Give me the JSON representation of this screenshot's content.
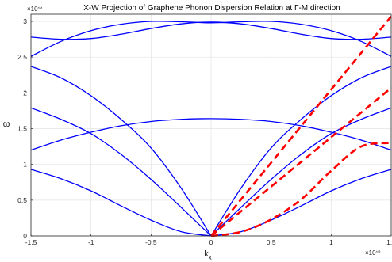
{
  "chart_data": {
    "type": "line",
    "title": "X-W Projection of Graphene Phonon Dispersion Relation at Γ-M direction",
    "xlabel": "k",
    "xlabel_sub": "x",
    "ylabel": "ω",
    "xlim": [
      -15000000000.0,
      15000000000.0
    ],
    "ylim": [
      0,
      310000000000000.0
    ],
    "x_ticks": [
      -15000000000.0,
      -10000000000.0,
      -5000000000.0,
      0,
      5000000000.0,
      10000000000.0,
      15000000000.0
    ],
    "x_tick_labels": [
      "-1.5",
      "-1",
      "-0.5",
      "0",
      "0.5",
      "1",
      "1.5"
    ],
    "y_ticks": [
      0,
      50000000000000.0,
      100000000000000.0,
      150000000000000.0,
      200000000000000.0,
      250000000000000.0,
      300000000000000.0
    ],
    "y_tick_labels": [
      "0",
      "0.5",
      "1",
      "1.5",
      "2",
      "2.5",
      "3"
    ],
    "x_exponent_label": "×10¹⁰",
    "y_exponent_label": "×10¹⁴",
    "grid": true,
    "series": [
      {
        "style": "solid",
        "color": "#0000ff",
        "x": [
          -15000000000.0,
          -12500000000.0,
          -10000000000.0,
          -7500000000.0,
          -5000000000.0,
          -2500000000.0,
          0,
          2500000000.0,
          5000000000.0,
          7500000000.0,
          10000000000.0,
          12500000000.0,
          15000000000.0
        ],
        "y": [
          251000000000000.0,
          272000000000000.0,
          287000000000000.0,
          296000000000000.0,
          300000000000000.0,
          299500000000000.0,
          298000000000000.0,
          299500000000000.0,
          300000000000000.0,
          296000000000000.0,
          287000000000000.0,
          272000000000000.0,
          251000000000000.0
        ]
      },
      {
        "style": "solid",
        "color": "#0000ff",
        "x": [
          -15000000000.0,
          -12500000000.0,
          -10000000000.0,
          -7500000000.0,
          -5000000000.0,
          -2500000000.0,
          0,
          2500000000.0,
          5000000000.0,
          7500000000.0,
          10000000000.0,
          12500000000.0,
          15000000000.0
        ],
        "y": [
          278000000000000.0,
          275000000000000.0,
          276000000000000.0,
          282000000000000.0,
          290000000000000.0,
          296500000000000.0,
          299000000000000.0,
          296500000000000.0,
          290000000000000.0,
          282000000000000.0,
          276000000000000.0,
          275000000000000.0,
          278000000000000.0
        ]
      },
      {
        "style": "solid",
        "color": "#0000ff",
        "x": [
          -15000000000.0,
          -12500000000.0,
          -10000000000.0,
          -7500000000.0,
          -5000000000.0,
          -2500000000.0,
          0,
          2500000000.0,
          5000000000.0,
          7500000000.0,
          10000000000.0,
          12500000000.0,
          15000000000.0
        ],
        "y": [
          237000000000000.0,
          221000000000000.0,
          196000000000000.0,
          163000000000000.0,
          123000000000000.0,
          67000000000000.0,
          0.0,
          67000000000000.0,
          123000000000000.0,
          163000000000000.0,
          196000000000000.0,
          221000000000000.0,
          237000000000000.0
        ]
      },
      {
        "style": "solid",
        "color": "#0000ff",
        "x": [
          -15000000000.0,
          -12500000000.0,
          -10000000000.0,
          -7500000000.0,
          -5000000000.0,
          -2500000000.0,
          0,
          2500000000.0,
          5000000000.0,
          7500000000.0,
          10000000000.0,
          12500000000.0,
          15000000000.0
        ],
        "y": [
          179000000000000.0,
          163000000000000.0,
          143000000000000.0,
          114000000000000.0,
          79000000000000.0,
          40000000000000.0,
          0.0,
          40000000000000.0,
          79000000000000.0,
          114000000000000.0,
          143000000000000.0,
          163000000000000.0,
          179000000000000.0
        ]
      },
      {
        "style": "solid",
        "color": "#0000ff",
        "x": [
          -15000000000.0,
          -12500000000.0,
          -10000000000.0,
          -7500000000.0,
          -5000000000.0,
          -2500000000.0,
          0,
          2500000000.0,
          5000000000.0,
          7500000000.0,
          10000000000.0,
          12500000000.0,
          15000000000.0
        ],
        "y": [
          120000000000000.0,
          134000000000000.0,
          145000000000000.0,
          154000000000000.0,
          160000000000000.0,
          163000000000000.0,
          164000000000000.0,
          163000000000000.0,
          160000000000000.0,
          154000000000000.0,
          145000000000000.0,
          134000000000000.0,
          120000000000000.0
        ]
      },
      {
        "style": "solid",
        "color": "#0000ff",
        "x": [
          -15000000000.0,
          -12500000000.0,
          -10000000000.0,
          -7500000000.0,
          -5000000000.0,
          -2500000000.0,
          0,
          2500000000.0,
          5000000000.0,
          7500000000.0,
          10000000000.0,
          12500000000.0,
          15000000000.0
        ],
        "y": [
          93000000000000.0,
          80000000000000.0,
          63000000000000.0,
          42000000000000.0,
          22000000000000.0,
          6000000000000.0,
          0.0,
          6000000000000.0,
          22000000000000.0,
          42000000000000.0,
          63000000000000.0,
          80000000000000.0,
          93000000000000.0
        ]
      },
      {
        "style": "dashed",
        "color": "#ff0000",
        "x": [
          0,
          15000000000.0
        ],
        "y": [
          0,
          307000000000000.0
        ]
      },
      {
        "style": "dashed",
        "color": "#ff0000",
        "x": [
          0,
          15000000000.0
        ],
        "y": [
          0,
          207000000000000.0
        ]
      },
      {
        "style": "dashed",
        "color": "#ff0000",
        "x": [
          0,
          2500000000.0,
          5000000000.0,
          7500000000.0,
          10000000000.0,
          12500000000.0,
          15000000000.0
        ],
        "y": [
          0,
          5700000000000.0,
          23000000000000.0,
          51000000000000.0,
          91000000000000.0,
          125000000000000.0,
          130000000000000.0
        ]
      }
    ]
  }
}
